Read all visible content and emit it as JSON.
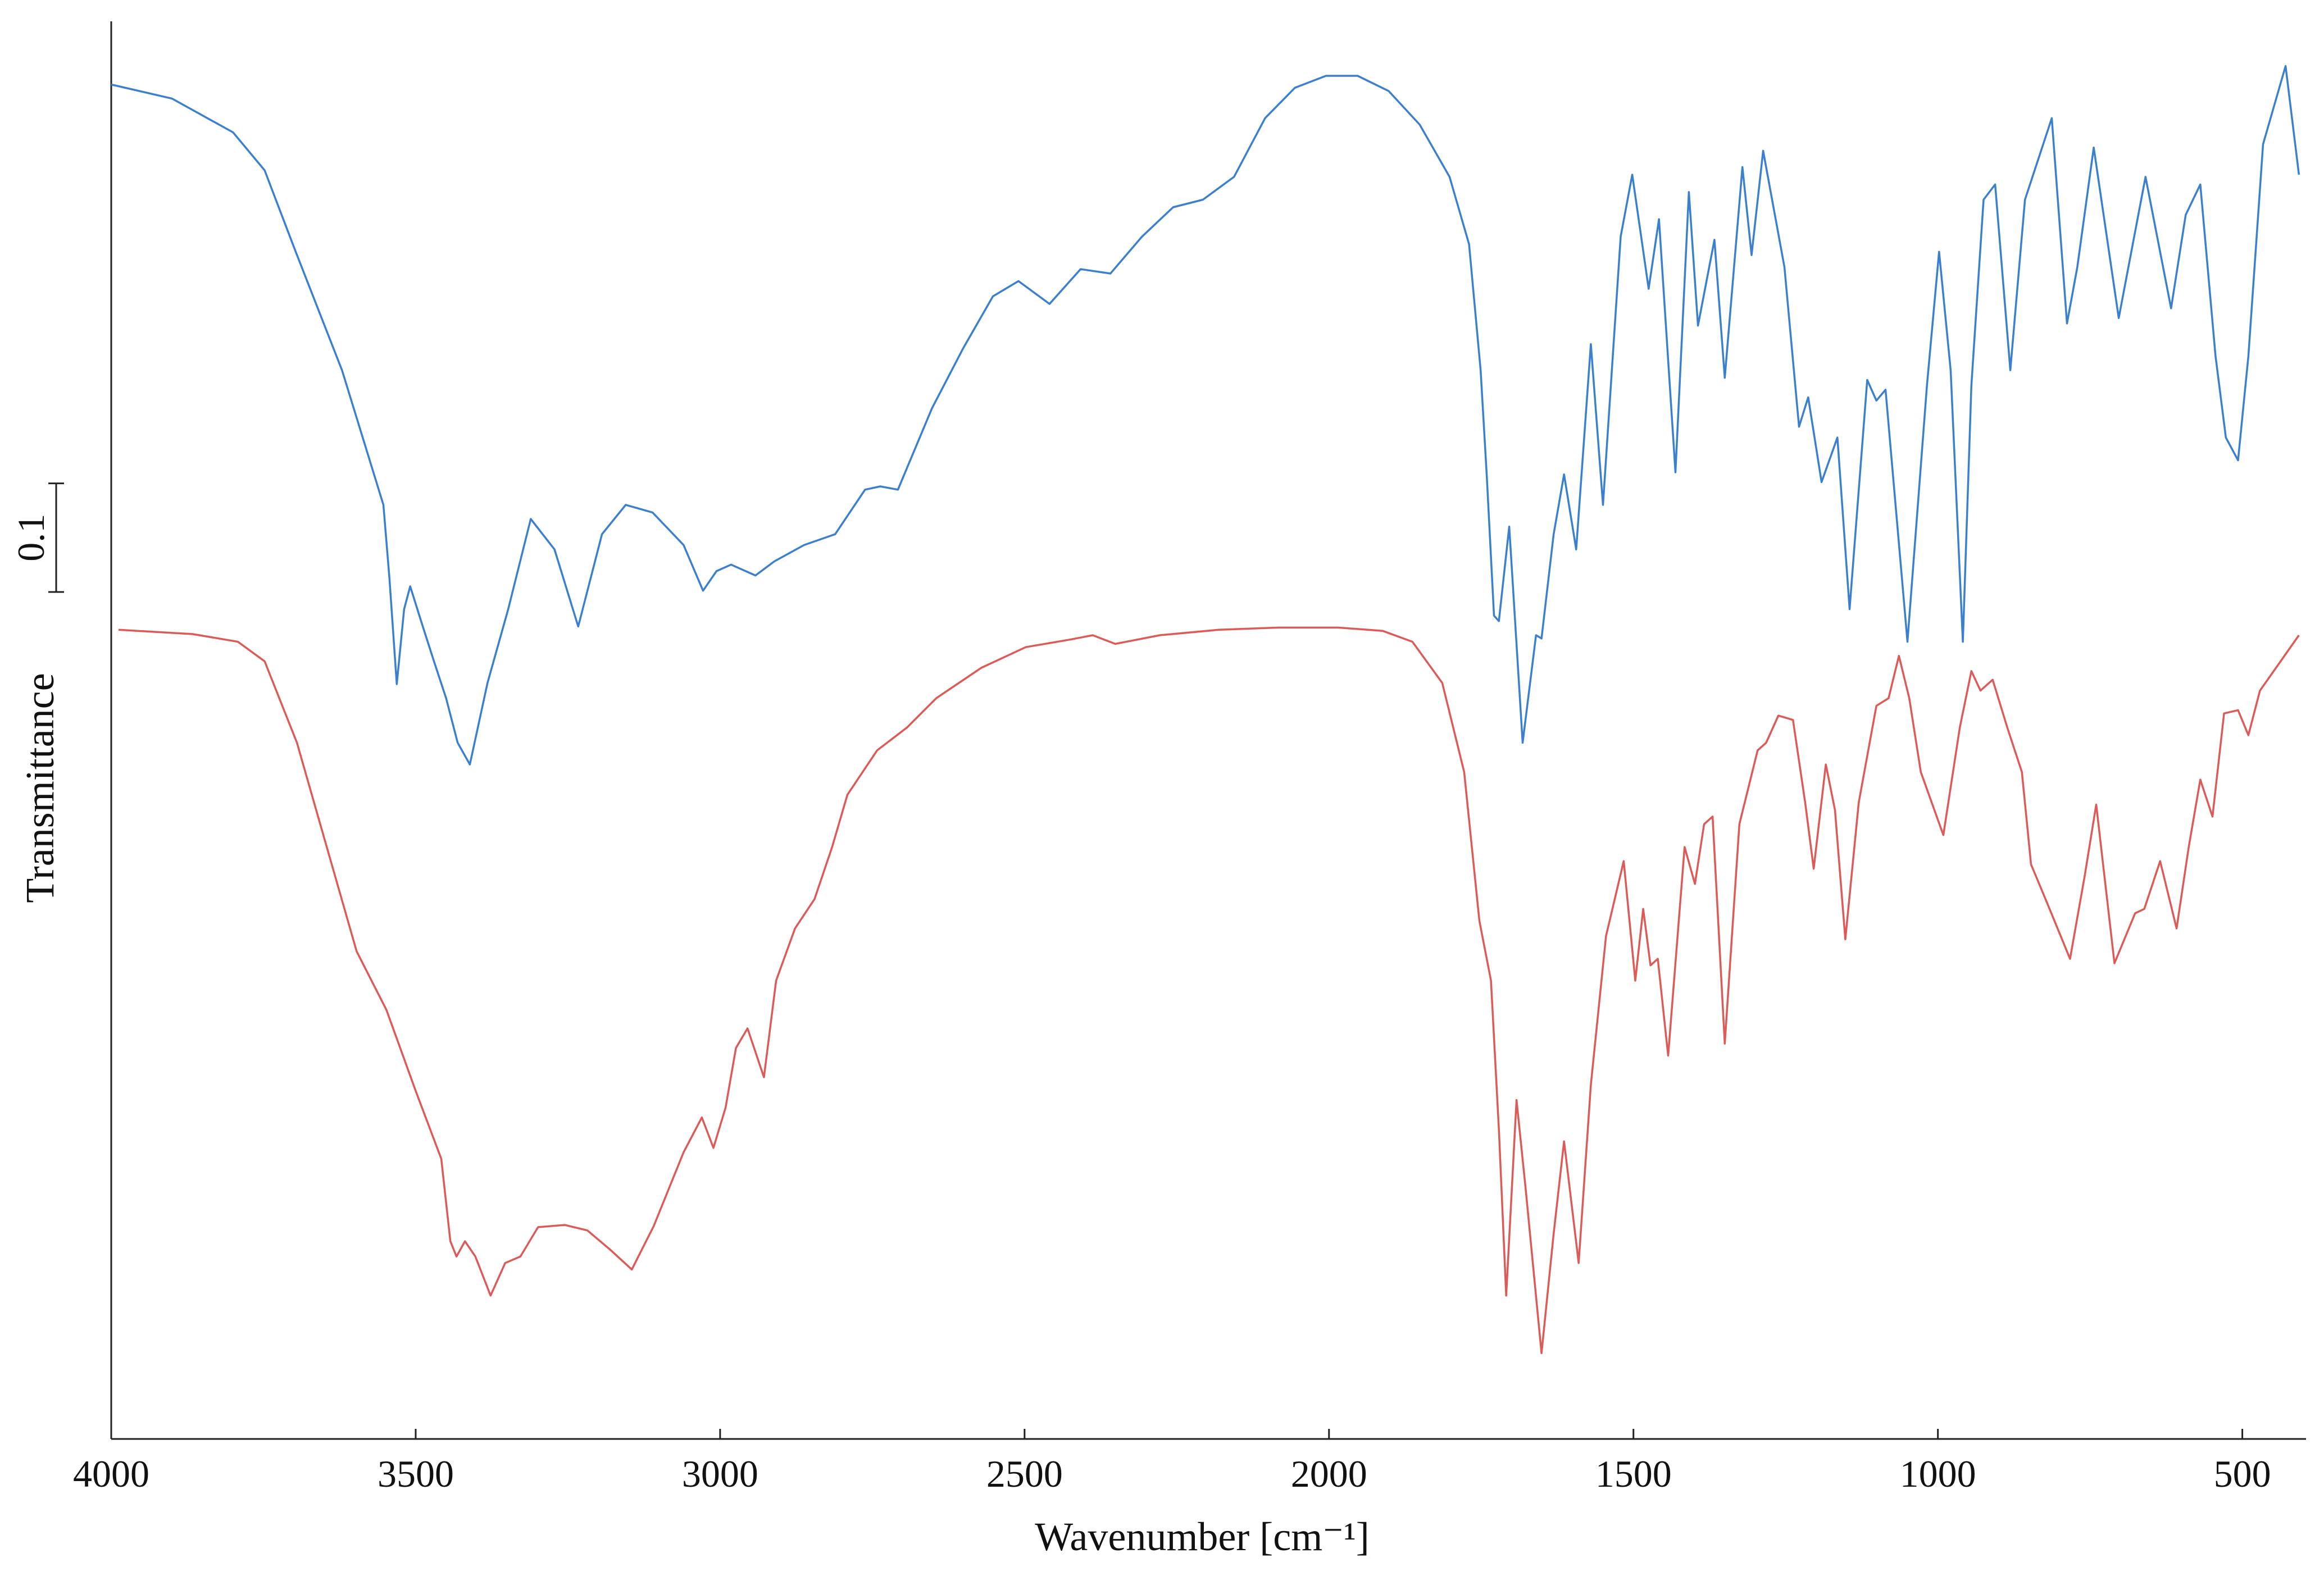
{
  "chart_data": {
    "type": "line",
    "xlabel": "Wavenumber [cm⁻¹]",
    "ylabel": "Transmittance",
    "xlim": [
      4000,
      400
    ],
    "xticks": [
      4000,
      3500,
      3000,
      2500,
      2000,
      1500,
      1000,
      500
    ],
    "ylim": [
      0,
      1.3
    ],
    "grid": false,
    "scale_bar": {
      "value": 0.1,
      "label": "0.1"
    },
    "series": [
      {
        "color": "#3b7fcf",
        "x": [
          4000,
          3900,
          3800,
          3748,
          3697,
          3621,
          3553,
          3543,
          3531,
          3519,
          3509,
          3490,
          3470,
          3450,
          3431,
          3411,
          3382,
          3348,
          3311,
          3272,
          3233,
          3194,
          3155,
          3111,
          3060,
          3028,
          3006,
          2982,
          2942,
          2911,
          2862,
          2811,
          2762,
          2737,
          2708,
          2652,
          2601,
          2552,
          2510,
          2459,
          2408,
          2359,
          2307,
          2256,
          2207,
          2156,
          2105,
          2056,
          2005,
          1953,
          1902,
          1851,
          1802,
          1770,
          1751,
          1741,
          1729,
          1721,
          1704,
          1682,
          1660,
          1651,
          1631,
          1614,
          1594,
          1570,
          1550,
          1521,
          1502,
          1475,
          1458,
          1431,
          1409,
          1394,
          1367,
          1350,
          1321,
          1306,
          1287,
          1252,
          1228,
          1213,
          1191,
          1165,
          1145,
          1116,
          1101,
          1086,
          1050,
          1018,
          998,
          979,
          959,
          945,
          925,
          906,
          881,
          857,
          813,
          788,
          771,
          744,
          703,
          659,
          617,
          593,
          569,
          544,
          527,
          507,
          490,
          466,
          429,
          407
        ],
        "values": [
          1.247,
          1.234,
          1.203,
          1.168,
          1.093,
          0.984,
          0.86,
          0.792,
          0.695,
          0.764,
          0.785,
          0.751,
          0.716,
          0.682,
          0.641,
          0.621,
          0.696,
          0.764,
          0.847,
          0.819,
          0.748,
          0.833,
          0.86,
          0.853,
          0.823,
          0.781,
          0.799,
          0.805,
          0.795,
          0.808,
          0.823,
          0.833,
          0.874,
          0.877,
          0.874,
          0.949,
          1.004,
          1.052,
          1.066,
          1.045,
          1.077,
          1.073,
          1.107,
          1.134,
          1.141,
          1.162,
          1.216,
          1.244,
          1.255,
          1.255,
          1.241,
          1.21,
          1.162,
          1.1,
          0.984,
          0.888,
          0.758,
          0.753,
          0.84,
          0.641,
          0.74,
          0.737,
          0.833,
          0.888,
          0.819,
          1.008,
          0.86,
          1.107,
          1.164,
          1.059,
          1.123,
          0.89,
          1.148,
          1.025,
          1.104,
          0.977,
          1.171,
          1.09,
          1.186,
          1.079,
          0.932,
          0.959,
          0.881,
          0.922,
          0.764,
          0.975,
          0.956,
          0.966,
          0.734,
          0.97,
          1.093,
          0.984,
          0.734,
          0.97,
          1.141,
          1.155,
          0.984,
          1.141,
          1.216,
          1.027,
          1.079,
          1.189,
          1.032,
          1.162,
          1.041,
          1.127,
          1.155,
          0.997,
          0.922,
          0.901,
          0.997,
          1.192,
          1.264,
          1.164
        ]
      },
      {
        "color": "#dc5a57",
        "x": [
          3988,
          3866,
          3792,
          3748,
          3695,
          3646,
          3597,
          3548,
          3499,
          3458,
          3443,
          3433,
          3419,
          3402,
          3377,
          3353,
          3328,
          3299,
          3255,
          3218,
          3182,
          3145,
          3109,
          3060,
          3030,
          3011,
          2991,
          2974,
          2955,
          2928,
          2908,
          2877,
          2845,
          2816,
          2791,
          2742,
          2693,
          2645,
          2571,
          2498,
          2425,
          2388,
          2351,
          2278,
          2181,
          2083,
          1985,
          1912,
          1863,
          1814,
          1778,
          1753,
          1734,
          1721,
          1709,
          1692,
          1677,
          1651,
          1631,
          1614,
          1590,
          1570,
          1545,
          1516,
          1497,
          1484,
          1472,
          1460,
          1443,
          1416,
          1399,
          1384,
          1370,
          1350,
          1326,
          1296,
          1282,
          1262,
          1238,
          1218,
          1204,
          1184,
          1169,
          1152,
          1130,
          1101,
          1081,
          1064,
          1047,
          1028,
          991,
          964,
          945,
          930,
          910,
          886,
          862,
          847,
          818,
          783,
          759,
          740,
          710,
          676,
          661,
          635,
          608,
          588,
          569,
          549,
          530,
          507,
          490,
          471,
          407
        ],
        "values": [
          0.745,
          0.741,
          0.734,
          0.716,
          0.641,
          0.545,
          0.449,
          0.395,
          0.319,
          0.258,
          0.182,
          0.168,
          0.182,
          0.168,
          0.132,
          0.162,
          0.168,
          0.195,
          0.197,
          0.192,
          0.175,
          0.156,
          0.196,
          0.264,
          0.296,
          0.268,
          0.305,
          0.36,
          0.378,
          0.333,
          0.422,
          0.47,
          0.497,
          0.545,
          0.593,
          0.634,
          0.655,
          0.682,
          0.71,
          0.729,
          0.736,
          0.74,
          0.732,
          0.74,
          0.745,
          0.747,
          0.747,
          0.744,
          0.734,
          0.696,
          0.614,
          0.477,
          0.422,
          0.285,
          0.132,
          0.312,
          0.23,
          0.079,
          0.189,
          0.274,
          0.162,
          0.326,
          0.463,
          0.532,
          0.422,
          0.488,
          0.436,
          0.442,
          0.353,
          0.545,
          0.511,
          0.566,
          0.573,
          0.364,
          0.566,
          0.634,
          0.641,
          0.666,
          0.662,
          0.586,
          0.525,
          0.621,
          0.579,
          0.46,
          0.586,
          0.675,
          0.682,
          0.721,
          0.682,
          0.614,
          0.556,
          0.655,
          0.707,
          0.689,
          0.699,
          0.655,
          0.614,
          0.529,
          0.49,
          0.442,
          0.518,
          0.584,
          0.438,
          0.484,
          0.488,
          0.532,
          0.47,
          0.545,
          0.607,
          0.573,
          0.668,
          0.671,
          0.648,
          0.689,
          0.74
        ]
      }
    ]
  }
}
